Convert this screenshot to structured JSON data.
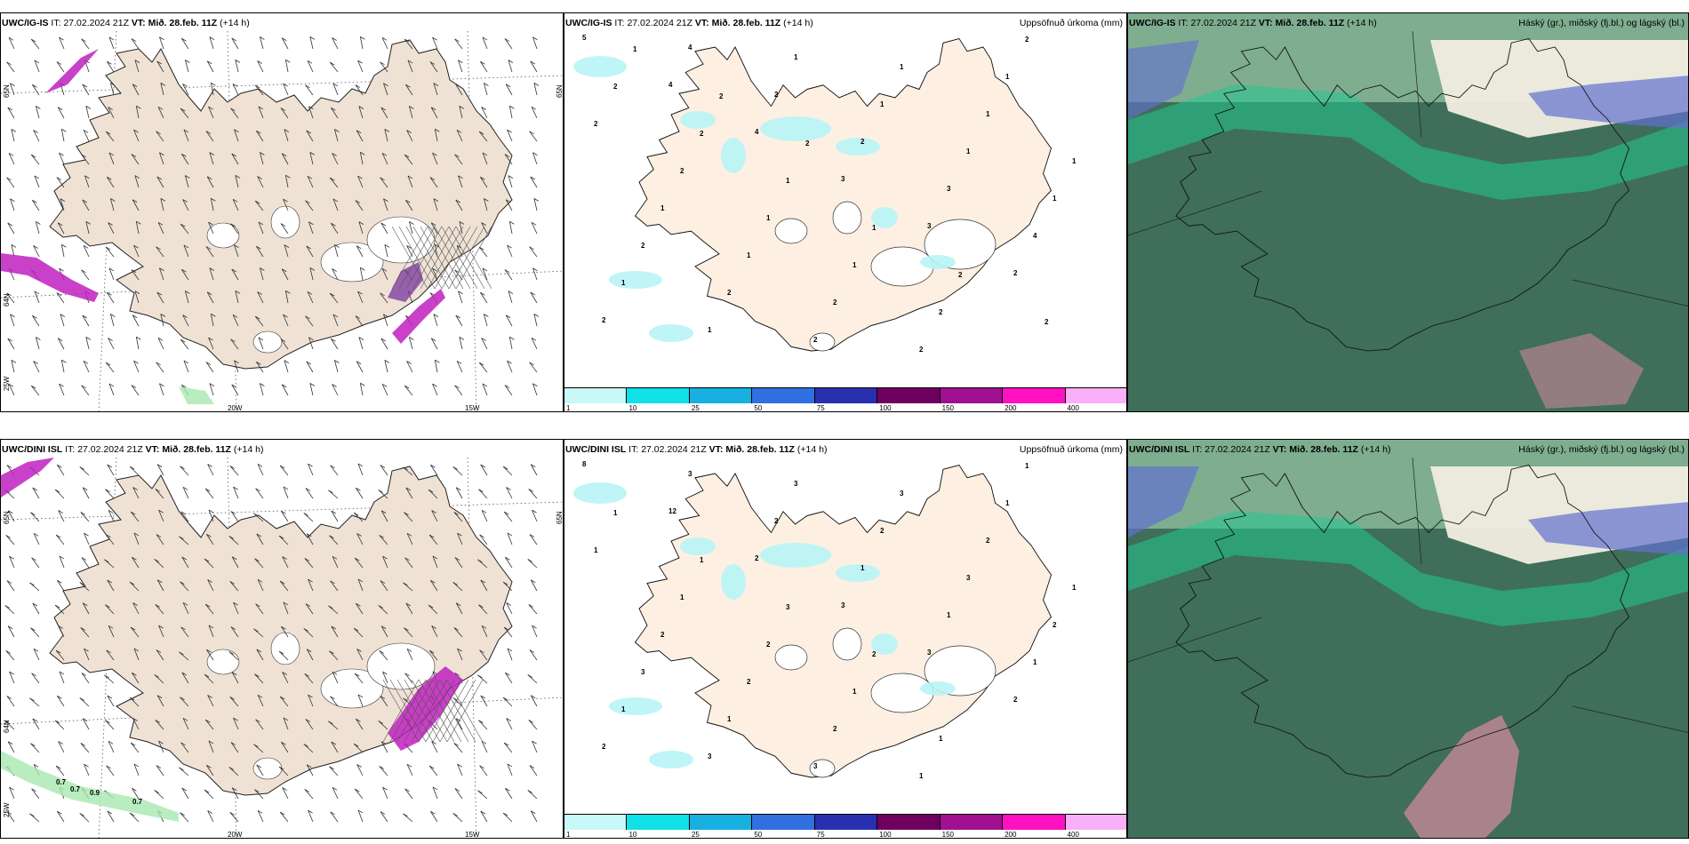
{
  "panels": {
    "tl": {
      "model": "UWC/IG-IS",
      "it_label": "IT:",
      "it": "27.02.2024 21Z",
      "vt_label": "VT:",
      "vt": "Mið. 28.feb. 11Z",
      "lead": "(+14 h)"
    },
    "tm": {
      "model": "UWC/IG-IS",
      "it_label": "IT:",
      "it": "27.02.2024 21Z",
      "vt_label": "VT:",
      "vt": "Mið. 28.feb. 11Z",
      "lead": "(+14 h)",
      "right_title": "Uppsöfnuð úrkoma (mm)"
    },
    "tr": {
      "model": "UWC/IG-IS",
      "it_label": "IT:",
      "it": "27.02.2024 21Z",
      "vt_label": "VT:",
      "vt": "Mið. 28.feb. 11Z",
      "lead": "(+14 h)",
      "right_title": "Háský (gr.), miðský (fj.bl.) og lágský (bl.)"
    },
    "bl": {
      "model": "UWC/DINI ISL",
      "it_label": "IT:",
      "it": "27.02.2024 21Z",
      "vt_label": "VT:",
      "vt": "Mið. 28.feb. 11Z",
      "lead": "(+14 h)"
    },
    "bm": {
      "model": "UWC/DINI ISL",
      "it_label": "IT:",
      "it": "27.02.2024 21Z",
      "vt_label": "VT:",
      "vt": "Mið. 28.feb. 11Z",
      "lead": "(+14 h)",
      "right_title": "Uppsöfnuð úrkoma (mm)"
    },
    "br": {
      "model": "UWC/DINI ISL",
      "it_label": "IT:",
      "it": "27.02.2024 21Z",
      "vt_label": "VT:",
      "vt": "Mið. 28.feb. 11Z",
      "lead": "(+14 h)",
      "right_title": "Háský (gr.), miðský (fj.bl.) og lágský (bl.)"
    }
  },
  "grid_labels": {
    "lon_20w": "20W",
    "lon_15w": "15W",
    "lat_65n": "65N",
    "lat_64n": "64N",
    "lat_25w": "25W"
  },
  "colorbar": {
    "ticks": [
      "1",
      "10",
      "25",
      "50",
      "75",
      "100",
      "150",
      "200",
      "400"
    ],
    "colors": [
      "#c8f8f8",
      "#10e0e8",
      "#18b0e0",
      "#3070e0",
      "#2830b0",
      "#700060",
      "#a01090",
      "#ff10c0",
      "#f8b0f8"
    ]
  },
  "precip_labels_top": [
    "5",
    "4",
    "4",
    "3",
    "3",
    "2",
    "2",
    "4",
    "2",
    "2",
    "3",
    "4",
    "1",
    "1",
    "1",
    "1",
    "1",
    "1",
    "2",
    "2",
    "2",
    "1",
    "1",
    "1",
    "1",
    "1",
    "2",
    "2",
    "1",
    "2",
    "2",
    "1",
    "1",
    "2",
    "2",
    "2",
    "2",
    "1",
    "1",
    "2",
    "2",
    "1",
    "2",
    "2"
  ],
  "precip_labels_bottom": [
    "8",
    "12",
    "2",
    "3",
    "3",
    "2",
    "2",
    "3",
    "2",
    "1",
    "1",
    "1",
    "1",
    "3",
    "3",
    "2",
    "3",
    "2",
    "3",
    "1",
    "3",
    "3",
    "2",
    "1",
    "2",
    "2",
    "2",
    "1",
    "1",
    "1",
    "1",
    "2",
    "1",
    "1",
    "1",
    "1",
    "1",
    "3",
    "2"
  ],
  "wind_labels_bottom": [
    "0.7",
    "0.7",
    "0.9",
    "0.7"
  ],
  "colors": {
    "land": "#efe2d5",
    "land_light": "#fdf0e2",
    "precip_light": "#b8f4f6",
    "cloud_low": "#3f6e5a",
    "cloud_mid": "#22c890",
    "cloud_high": "#6270d0",
    "snow_magenta": "#c020c0"
  }
}
